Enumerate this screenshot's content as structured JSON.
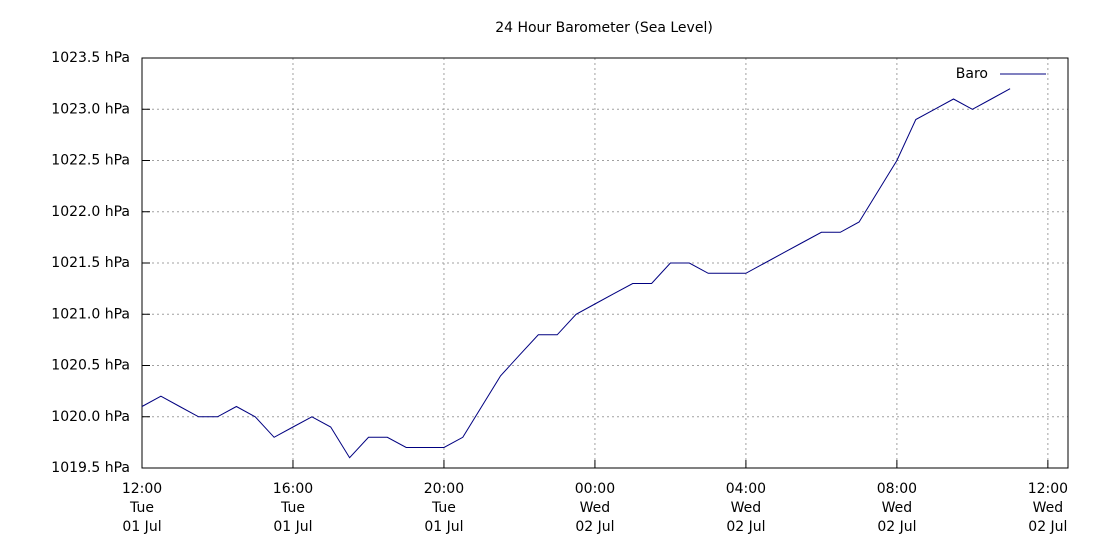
{
  "chart_data": {
    "type": "line",
    "title": "24 Hour Barometer (Sea Level)",
    "x": [
      "01 Jul 12:00",
      "01 Jul 12:30",
      "01 Jul 13:00",
      "01 Jul 13:30",
      "01 Jul 14:00",
      "01 Jul 14:30",
      "01 Jul 15:00",
      "01 Jul 15:30",
      "01 Jul 16:00",
      "01 Jul 16:30",
      "01 Jul 17:00",
      "01 Jul 17:30",
      "01 Jul 18:00",
      "01 Jul 18:30",
      "01 Jul 19:00",
      "01 Jul 19:30",
      "01 Jul 20:00",
      "01 Jul 20:30",
      "01 Jul 21:00",
      "01 Jul 21:30",
      "01 Jul 22:00",
      "01 Jul 22:30",
      "01 Jul 23:00",
      "01 Jul 23:30",
      "02 Jul 00:00",
      "02 Jul 00:30",
      "02 Jul 01:00",
      "02 Jul 01:30",
      "02 Jul 02:00",
      "02 Jul 02:30",
      "02 Jul 03:00",
      "02 Jul 03:30",
      "02 Jul 04:00",
      "02 Jul 04:30",
      "02 Jul 05:00",
      "02 Jul 05:30",
      "02 Jul 06:00",
      "02 Jul 06:30",
      "02 Jul 07:00",
      "02 Jul 07:30",
      "02 Jul 08:00",
      "02 Jul 08:30",
      "02 Jul 09:00",
      "02 Jul 09:30",
      "02 Jul 10:00",
      "02 Jul 10:30",
      "02 Jul 11:00"
    ],
    "series": [
      {
        "name": "Baro",
        "color": "#000080",
        "values": [
          1020.1,
          1020.2,
          1020.1,
          1020.0,
          1020.0,
          1020.1,
          1020.0,
          1019.8,
          1019.9,
          1020.0,
          1019.9,
          1019.6,
          1019.8,
          1019.8,
          1019.7,
          1019.7,
          1019.7,
          1019.8,
          1020.1,
          1020.4,
          1020.6,
          1020.8,
          1020.8,
          1021.0,
          1021.1,
          1021.2,
          1021.3,
          1021.3,
          1021.5,
          1021.5,
          1021.4,
          1021.4,
          1021.4,
          1021.5,
          1021.6,
          1021.7,
          1021.8,
          1021.8,
          1021.9,
          1022.2,
          1022.5,
          1022.9,
          1023.0,
          1023.1,
          1023.0,
          1023.1,
          1023.2
        ]
      }
    ],
    "xlim": [
      "01 Jul 12:00",
      "02 Jul 12:32"
    ],
    "xticks": [
      {
        "value": "01 Jul 12:00",
        "label": [
          "12:00",
          "Tue",
          "01 Jul"
        ]
      },
      {
        "value": "01 Jul 16:00",
        "label": [
          "16:00",
          "Tue",
          "01 Jul"
        ]
      },
      {
        "value": "01 Jul 20:00",
        "label": [
          "20:00",
          "Tue",
          "01 Jul"
        ]
      },
      {
        "value": "02 Jul 00:00",
        "label": [
          "00:00",
          "Wed",
          "02 Jul"
        ]
      },
      {
        "value": "02 Jul 04:00",
        "label": [
          "04:00",
          "Wed",
          "02 Jul"
        ]
      },
      {
        "value": "02 Jul 08:00",
        "label": [
          "08:00",
          "Wed",
          "02 Jul"
        ]
      },
      {
        "value": "02 Jul 12:00",
        "label": [
          "12:00",
          "Wed",
          "02 Jul"
        ]
      }
    ],
    "ylim": [
      1019.5,
      1023.5
    ],
    "yticks": [
      {
        "value": 1019.5,
        "label": "1019.5 hPa"
      },
      {
        "value": 1020.0,
        "label": "1020.0 hPa"
      },
      {
        "value": 1020.5,
        "label": "1020.5 hPa"
      },
      {
        "value": 1021.0,
        "label": "1021.0 hPa"
      },
      {
        "value": 1021.5,
        "label": "1021.5 hPa"
      },
      {
        "value": 1022.0,
        "label": "1022.0 hPa"
      },
      {
        "value": 1022.5,
        "label": "1022.5 hPa"
      },
      {
        "value": 1023.0,
        "label": "1023.0 hPa"
      },
      {
        "value": 1023.5,
        "label": "1023.5 hPa"
      }
    ],
    "grid": true,
    "legend": "top-right"
  }
}
